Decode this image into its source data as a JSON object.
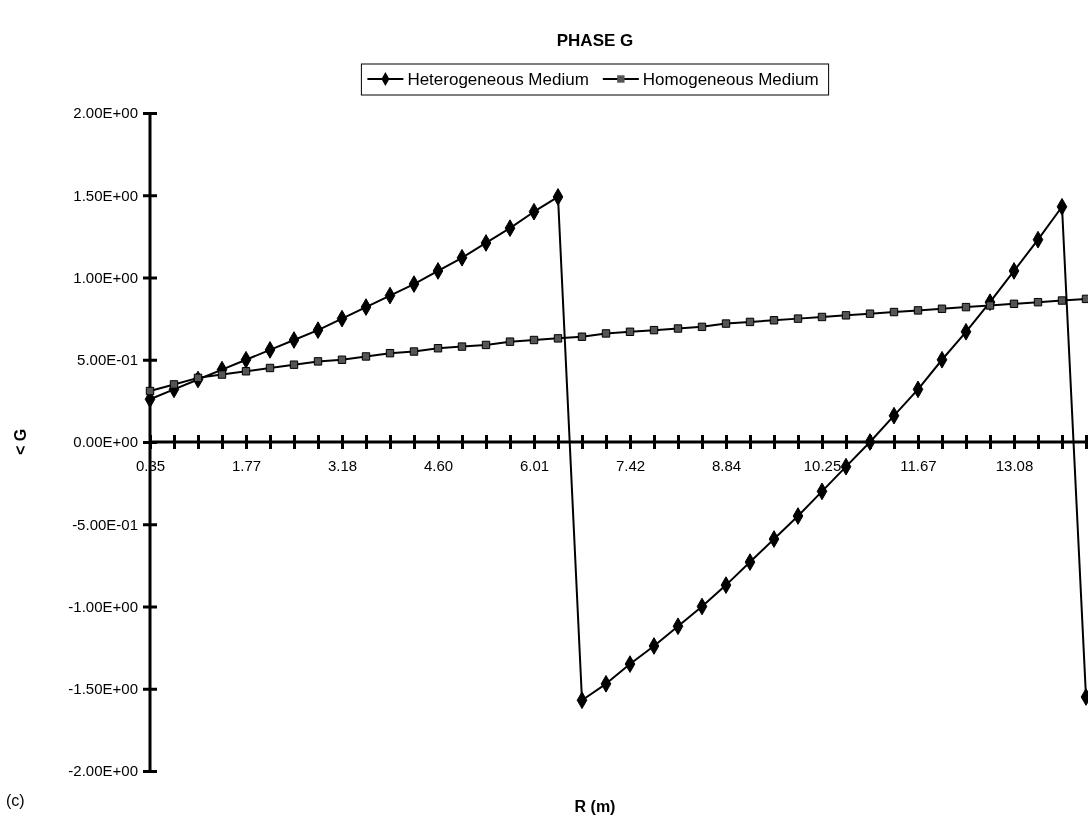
{
  "chart_data": {
    "type": "line",
    "title": "PHASE G",
    "xlabel": "R (m)",
    "ylabel": "< G",
    "annotations": [
      "(c)"
    ],
    "categories": [
      "0.35",
      null,
      null,
      null,
      "1.77",
      null,
      null,
      null,
      "3.18",
      null,
      null,
      null,
      "4.60",
      null,
      null,
      null,
      "6.01",
      null,
      null,
      null,
      "7.42",
      null,
      null,
      null,
      "8.84",
      null,
      null,
      null,
      "10.25",
      null,
      null,
      null,
      "11.67",
      null,
      null,
      null,
      "13.08",
      null,
      null,
      null
    ],
    "series": [
      {
        "name": "Heterogeneous Medium",
        "color": "#000000",
        "marker": "diamond",
        "values": [
          0.26,
          0.32,
          0.38,
          0.44,
          0.5,
          0.56,
          0.62,
          0.68,
          0.75,
          0.82,
          0.89,
          0.96,
          1.04,
          1.12,
          1.21,
          1.3,
          1.4,
          1.49,
          -1.57,
          -1.47,
          -1.35,
          -1.24,
          -1.12,
          -1.0,
          -0.87,
          -0.73,
          -0.59,
          -0.45,
          -0.3,
          -0.15,
          0.0,
          0.16,
          0.32,
          0.5,
          0.67,
          0.85,
          1.04,
          1.23,
          1.43,
          -1.55
        ]
      },
      {
        "name": "Homogeneous Medium",
        "color": "#000000",
        "marker": "square",
        "values": [
          0.31,
          0.35,
          0.39,
          0.41,
          0.43,
          0.45,
          0.47,
          0.49,
          0.5,
          0.52,
          0.54,
          0.55,
          0.57,
          0.58,
          0.59,
          0.61,
          0.62,
          0.63,
          0.64,
          0.66,
          0.67,
          0.68,
          0.69,
          0.7,
          0.72,
          0.73,
          0.74,
          0.75,
          0.76,
          0.77,
          0.78,
          0.79,
          0.8,
          0.81,
          0.82,
          0.83,
          0.84,
          0.85,
          0.86,
          0.87
        ]
      }
    ],
    "ylim": [
      -2,
      2
    ],
    "yticks": [
      {
        "value": -2,
        "label": "-2.00E+00"
      },
      {
        "value": -1.5,
        "label": "-1.50E+00"
      },
      {
        "value": -1,
        "label": "-1.00E+00"
      },
      {
        "value": -0.5,
        "label": "-5.00E-01"
      },
      {
        "value": 0,
        "label": "0.00E+00"
      },
      {
        "value": 0.5,
        "label": "5.00E-01"
      },
      {
        "value": 1,
        "label": "1.00E+00"
      },
      {
        "value": 1.5,
        "label": "1.50E+00"
      },
      {
        "value": 2,
        "label": "2.00E+00"
      }
    ],
    "legend": "top",
    "line_style": "solid"
  }
}
